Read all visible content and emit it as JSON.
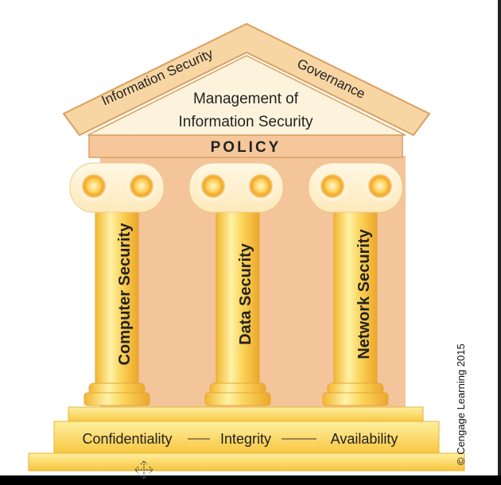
{
  "roof": {
    "left_text": "Information Security",
    "right_text": "Governance",
    "inner_line1": "Management of",
    "inner_line2": "Information Security"
  },
  "lintel": {
    "text": "POLICY"
  },
  "columns": [
    {
      "label": "Computer Security"
    },
    {
      "label": "Data Security"
    },
    {
      "label": "Network Security"
    }
  ],
  "base": {
    "items": [
      "Confidentiality",
      "Integrity",
      "Availability"
    ]
  },
  "copyright": "© Cengage Learning 2015",
  "colors": {
    "roof": "#f8d6a4",
    "roof_inner": "#fdf3dc",
    "backdrop": "#f4c49a",
    "column": "#f9c84a",
    "column_highlight": "#fff1b0",
    "step": "#fbd24e",
    "capital": "#fff3cf",
    "outline": "#d9a060"
  }
}
